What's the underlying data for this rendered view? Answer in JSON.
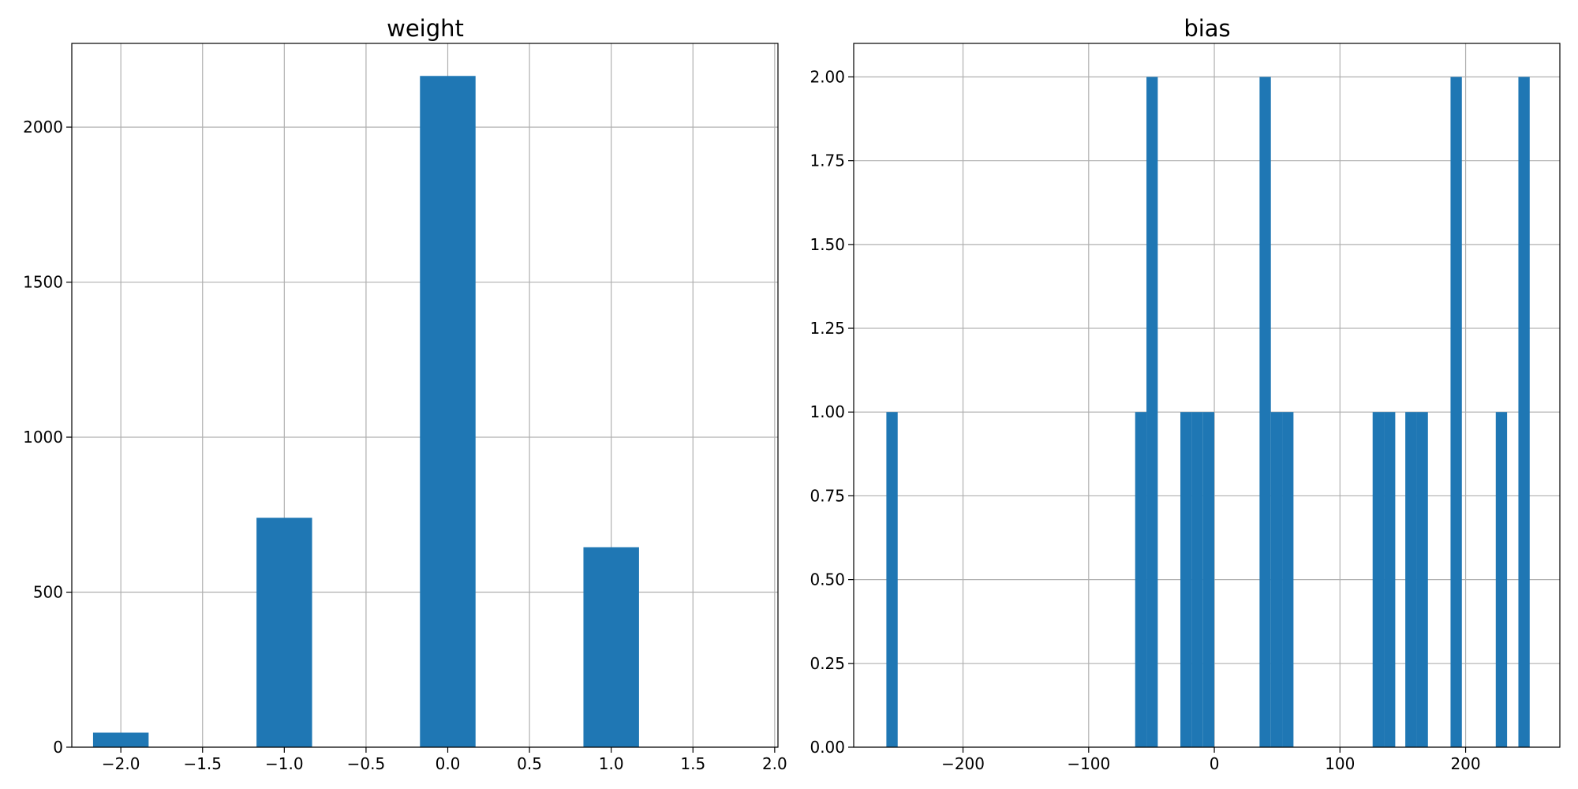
{
  "chart_data": [
    {
      "type": "bar",
      "title": "weight",
      "xlabel": "",
      "ylabel": "",
      "xlim": [
        -2.3,
        2.02
      ],
      "ylim": [
        0,
        2270
      ],
      "grid": true,
      "color": "#1f77b4",
      "x_ticks": [
        {
          "value": -2.0,
          "label": "−2.0"
        },
        {
          "value": -1.5,
          "label": "−1.5"
        },
        {
          "value": -1.0,
          "label": "−1.0"
        },
        {
          "value": -0.5,
          "label": "−0.5"
        },
        {
          "value": 0.0,
          "label": "0.0"
        },
        {
          "value": 0.5,
          "label": "0.5"
        },
        {
          "value": 1.0,
          "label": "1.0"
        },
        {
          "value": 1.5,
          "label": "1.5"
        },
        {
          "value": 2.0,
          "label": "2.0"
        }
      ],
      "y_ticks": [
        {
          "value": 0,
          "label": "0"
        },
        {
          "value": 500,
          "label": "500"
        },
        {
          "value": 1000,
          "label": "1000"
        },
        {
          "value": 1500,
          "label": "1500"
        },
        {
          "value": 2000,
          "label": "2000"
        }
      ],
      "bars": [
        {
          "start": -2.17,
          "end": -1.83,
          "value": 47
        },
        {
          "start": -1.17,
          "end": -0.83,
          "value": 740
        },
        {
          "start": -0.17,
          "end": 0.17,
          "value": 2165
        },
        {
          "start": 0.83,
          "end": 1.17,
          "value": 645
        }
      ]
    },
    {
      "type": "bar",
      "title": "bias",
      "xlabel": "",
      "ylabel": "",
      "xlim": [
        -287,
        275
      ],
      "ylim": [
        0,
        2.1
      ],
      "grid": true,
      "color": "#1f77b4",
      "x_ticks": [
        {
          "value": -200,
          "label": "−200"
        },
        {
          "value": -100,
          "label": "−100"
        },
        {
          "value": 0,
          "label": "0"
        },
        {
          "value": 100,
          "label": "100"
        },
        {
          "value": 200,
          "label": "200"
        }
      ],
      "y_ticks": [
        {
          "value": 0,
          "label": "0.00"
        },
        {
          "value": 0.25,
          "label": "0.25"
        },
        {
          "value": 0.5,
          "label": "0.50"
        },
        {
          "value": 0.75,
          "label": "0.75"
        },
        {
          "value": 1.0,
          "label": "1.00"
        },
        {
          "value": 1.25,
          "label": "1.25"
        },
        {
          "value": 1.5,
          "label": "1.50"
        },
        {
          "value": 1.75,
          "label": "1.75"
        },
        {
          "value": 2.0,
          "label": "2.00"
        }
      ],
      "bars": [
        {
          "start": -261,
          "end": -252,
          "value": 1
        },
        {
          "start": -63,
          "end": -54,
          "value": 1
        },
        {
          "start": -54,
          "end": -45,
          "value": 2
        },
        {
          "start": -27,
          "end": -18,
          "value": 1
        },
        {
          "start": -18,
          "end": -9,
          "value": 1
        },
        {
          "start": -9,
          "end": 0,
          "value": 1
        },
        {
          "start": 36,
          "end": 45,
          "value": 2
        },
        {
          "start": 45,
          "end": 54,
          "value": 1
        },
        {
          "start": 54,
          "end": 63,
          "value": 1
        },
        {
          "start": 126,
          "end": 135,
          "value": 1
        },
        {
          "start": 135,
          "end": 144,
          "value": 1
        },
        {
          "start": 152,
          "end": 161,
          "value": 1
        },
        {
          "start": 161,
          "end": 170,
          "value": 1
        },
        {
          "start": 188,
          "end": 197,
          "value": 2
        },
        {
          "start": 224,
          "end": 233,
          "value": 1
        },
        {
          "start": 242,
          "end": 251,
          "value": 2
        }
      ]
    }
  ]
}
